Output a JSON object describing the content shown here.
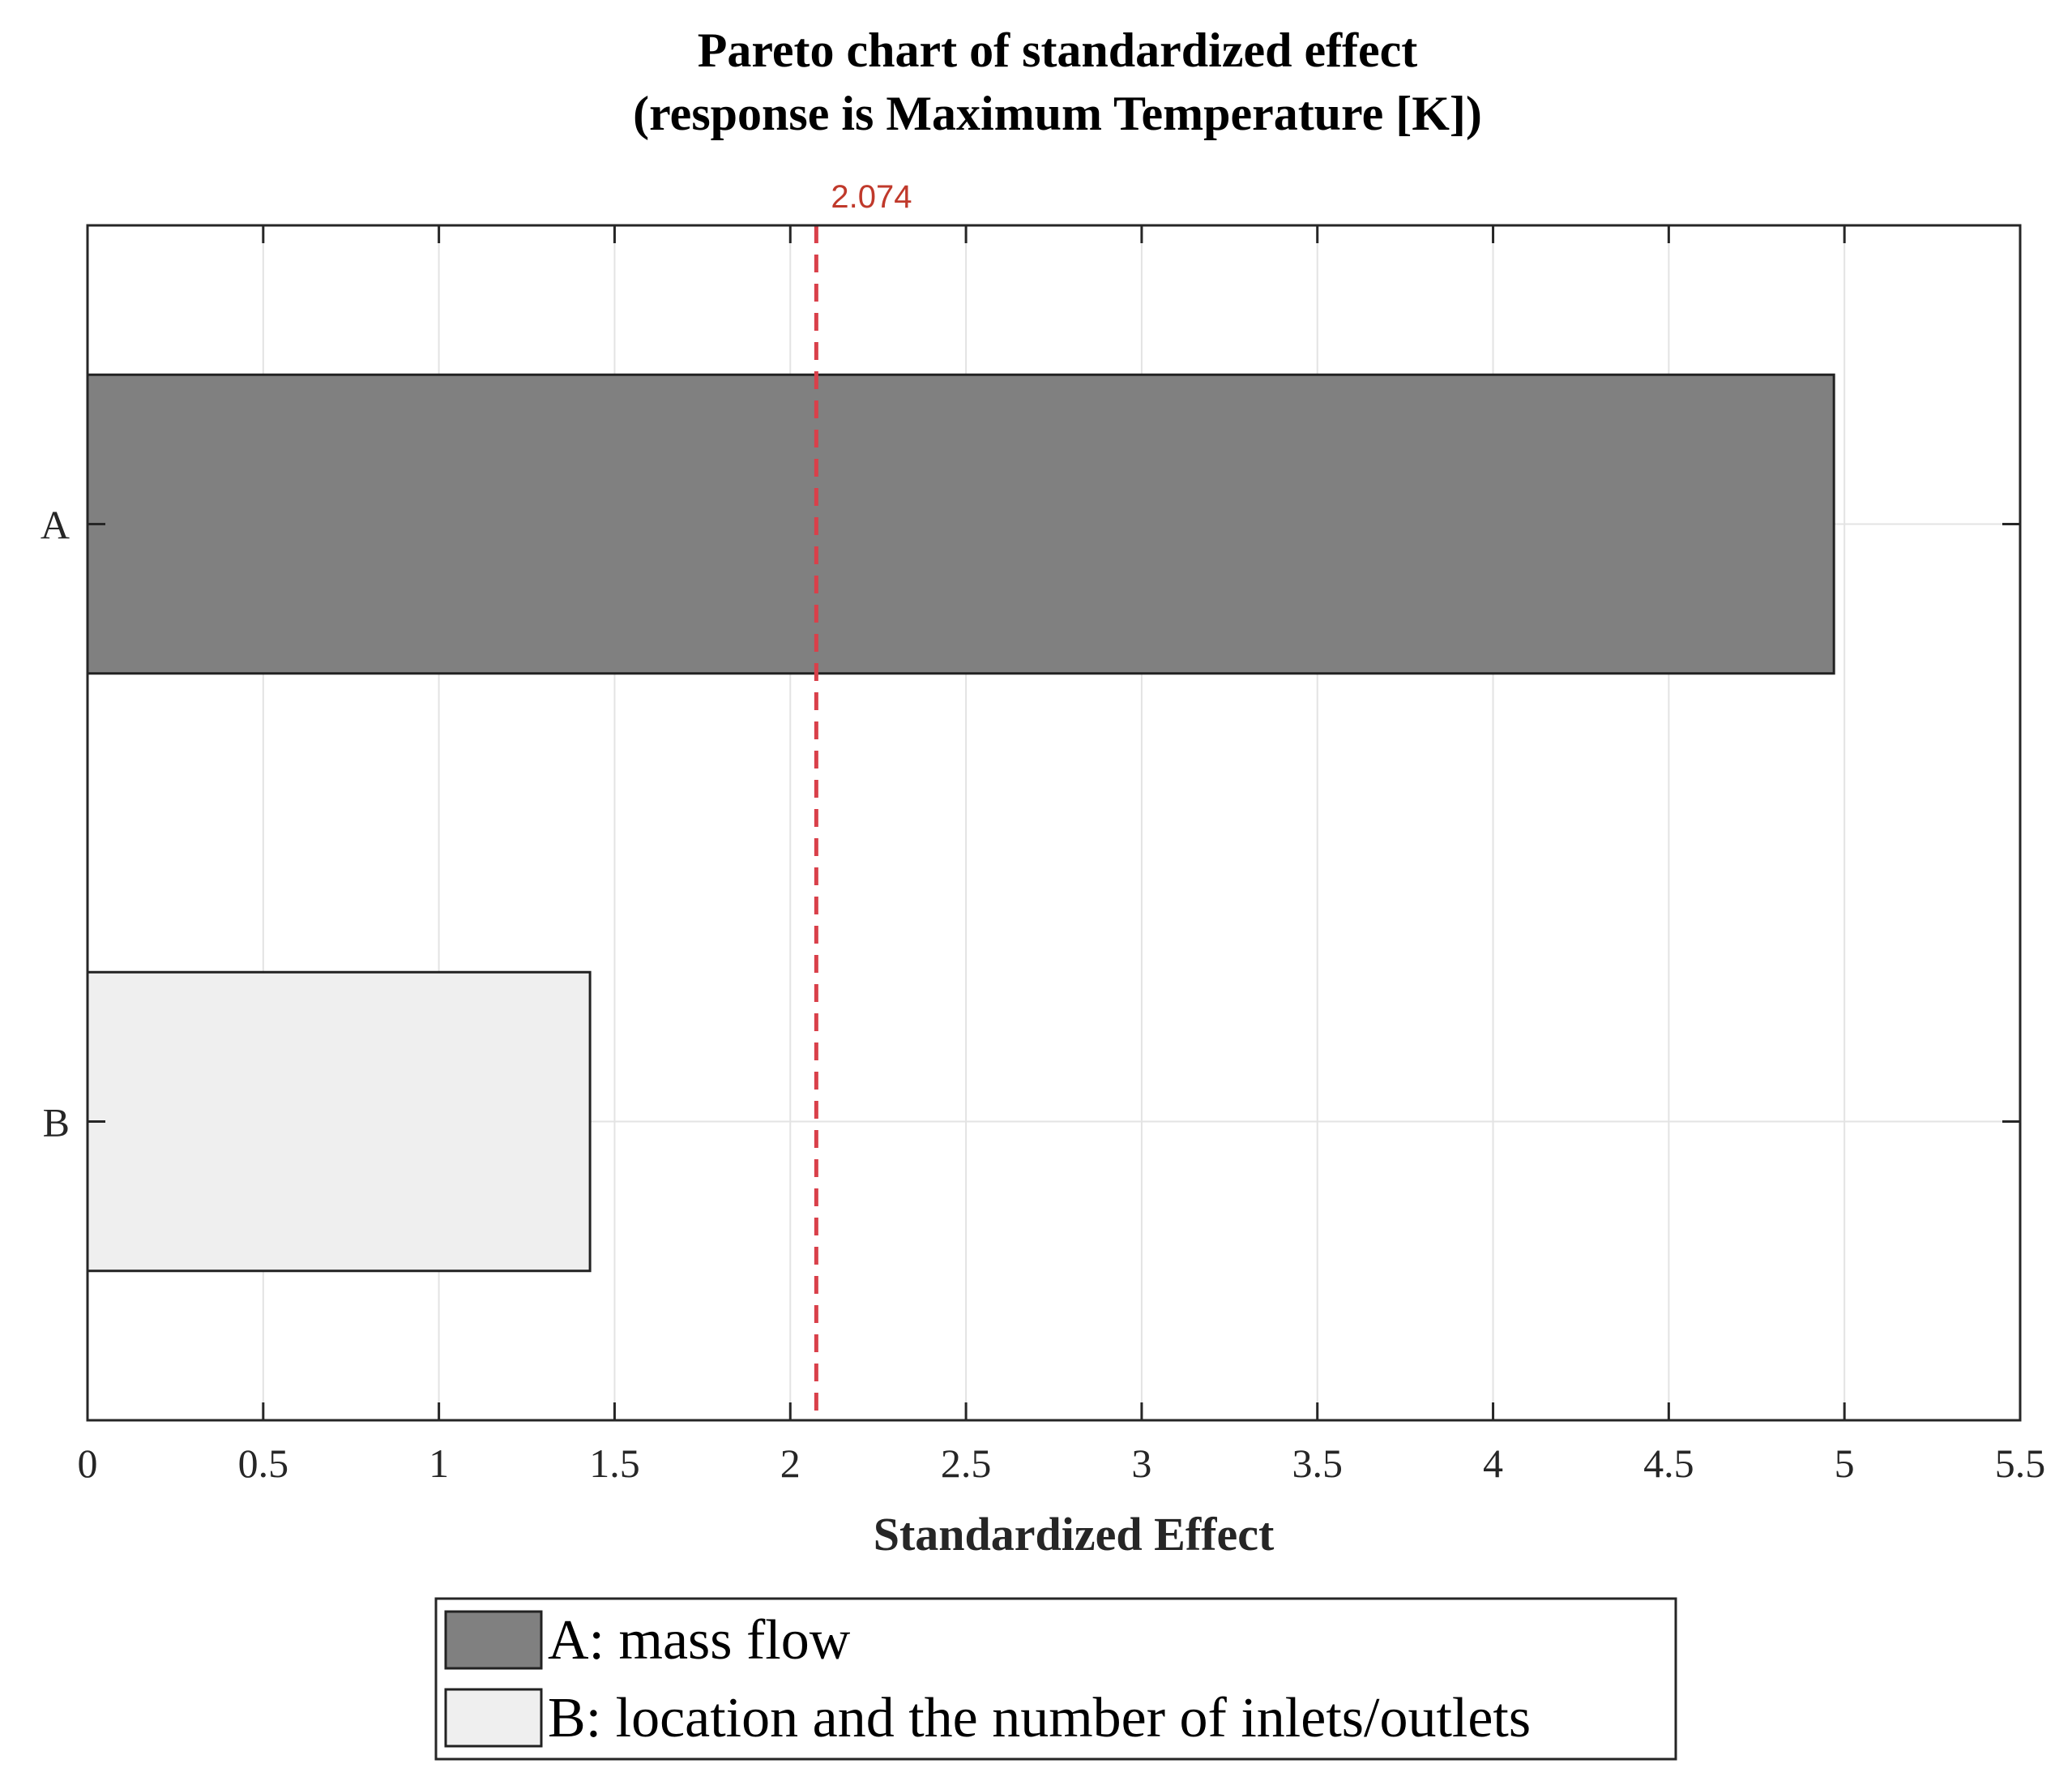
{
  "chart_data": {
    "type": "bar",
    "orientation": "horizontal",
    "title": "Pareto chart of standardized effect",
    "subtitle": "(response is Maximum Temperature [K])",
    "xlabel": "Standardized Effect",
    "ylabel": "",
    "xlim": [
      0,
      5.5
    ],
    "xticks": [
      0,
      0.5,
      1,
      1.5,
      2,
      2.5,
      3,
      3.5,
      4,
      4.5,
      5,
      5.5
    ],
    "xtick_labels": [
      "0",
      "0.5",
      "1",
      "1.5",
      "2",
      "2.5",
      "3",
      "3.5",
      "4",
      "4.5",
      "5",
      "5.5"
    ],
    "categories": [
      "A",
      "B"
    ],
    "values": [
      4.97,
      1.43
    ],
    "bar_colors": [
      "#808080",
      "#efefef"
    ],
    "grid": true,
    "reference_line": {
      "value": 2.074,
      "label": "2.074",
      "color": "#d9404a",
      "style": "dashed"
    },
    "legend": {
      "placement": "bottom-center",
      "entries": [
        {
          "label": "A: mass flow",
          "color": "#808080"
        },
        {
          "label": "B: location and the number of inlets/outlets",
          "color": "#efefef"
        }
      ]
    }
  }
}
